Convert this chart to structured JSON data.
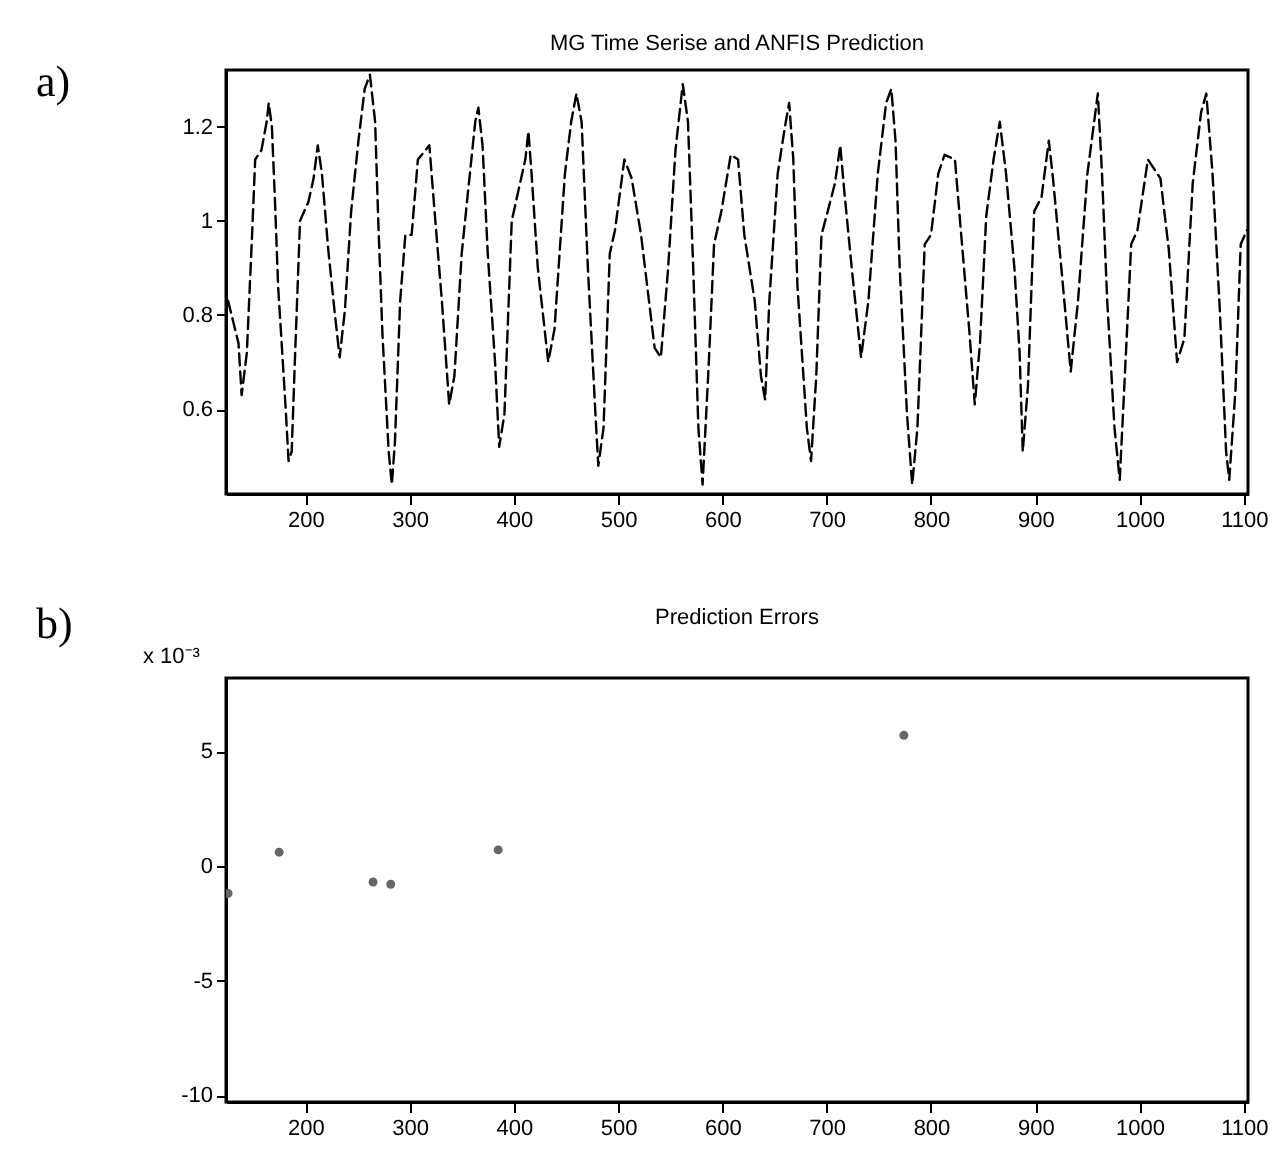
{
  "chart_data": [
    {
      "type": "line",
      "title": "MG Time Serise and ANFIS Prediction",
      "annotations": [
        "a)"
      ],
      "xlim": [
        124,
        1104
      ],
      "ylim": [
        0.42,
        1.32
      ],
      "xticks": [
        200,
        300,
        400,
        500,
        600,
        700,
        800,
        900,
        1000,
        1100
      ],
      "yticks": [
        0.6,
        0.8,
        1,
        1.2
      ],
      "line_style": "dashed",
      "series": [
        {
          "color": "#000000",
          "x": [
            126,
            136,
            139,
            144,
            149,
            152,
            158,
            163,
            165,
            168,
            171,
            174,
            181,
            184,
            187,
            190,
            195,
            203,
            208,
            212,
            216,
            222,
            228,
            233,
            238,
            244,
            251,
            257,
            262,
            267,
            270,
            274,
            280,
            283,
            286,
            291,
            296,
            302,
            308,
            319,
            324,
            331,
            338,
            343,
            350,
            356,
            363,
            366,
            370,
            375,
            382,
            386,
            391,
            398,
            404,
            411,
            414,
            417,
            423,
            433,
            439,
            449,
            455,
            460,
            465,
            471,
            478,
            481,
            486,
            492,
            497,
            506,
            513,
            522,
            535,
            541,
            548,
            555,
            562,
            567,
            572,
            577,
            581,
            587,
            592,
            599,
            608,
            615,
            621,
            631,
            637,
            641,
            645,
            653,
            660,
            664,
            668,
            672,
            681,
            685,
            690,
            695,
            701,
            708,
            713,
            717,
            724,
            733,
            740,
            749,
            757,
            762,
            766,
            770,
            777,
            782,
            787,
            794,
            800,
            807,
            813,
            823,
            829,
            837,
            842,
            847,
            853,
            860,
            866,
            872,
            880,
            885,
            888,
            893,
            899,
            906,
            913,
            917,
            925,
            934,
            941,
            950,
            960,
            964,
            969,
            976,
            981,
            985,
            992,
            998,
            1008,
            1020,
            1028,
            1036,
            1043,
            1051,
            1059,
            1064,
            1070,
            1077,
            1083,
            1086,
            1092,
            1097,
            1103
          ],
          "values": [
            0.83,
            0.74,
            0.63,
            0.72,
            0.97,
            1.13,
            1.15,
            1.21,
            1.25,
            1.2,
            1.04,
            0.86,
            0.61,
            0.49,
            0.51,
            0.7,
            1.0,
            1.04,
            1.09,
            1.16,
            1.1,
            0.94,
            0.81,
            0.71,
            0.81,
            1.02,
            1.17,
            1.28,
            1.31,
            1.21,
            1.0,
            0.76,
            0.51,
            0.44,
            0.53,
            0.83,
            0.97,
            0.97,
            1.13,
            1.16,
            1.02,
            0.83,
            0.61,
            0.67,
            0.93,
            1.06,
            1.21,
            1.24,
            1.16,
            0.93,
            0.7,
            0.52,
            0.59,
            1.0,
            1.06,
            1.13,
            1.19,
            1.1,
            0.9,
            0.7,
            0.77,
            1.1,
            1.21,
            1.27,
            1.21,
            0.9,
            0.6,
            0.48,
            0.56,
            0.93,
            0.98,
            1.13,
            1.09,
            0.97,
            0.73,
            0.71,
            0.9,
            1.15,
            1.29,
            1.21,
            0.9,
            0.56,
            0.44,
            0.7,
            0.95,
            1.02,
            1.14,
            1.13,
            0.97,
            0.83,
            0.67,
            0.62,
            0.83,
            1.1,
            1.2,
            1.25,
            1.13,
            0.86,
            0.56,
            0.49,
            0.67,
            0.97,
            1.02,
            1.08,
            1.16,
            1.06,
            0.9,
            0.71,
            0.83,
            1.1,
            1.25,
            1.28,
            1.17,
            0.9,
            0.59,
            0.44,
            0.56,
            0.95,
            0.97,
            1.1,
            1.14,
            1.13,
            0.97,
            0.76,
            0.61,
            0.74,
            1.01,
            1.13,
            1.21,
            1.1,
            0.9,
            0.72,
            0.51,
            0.65,
            1.02,
            1.05,
            1.17,
            1.09,
            0.9,
            0.68,
            0.83,
            1.1,
            1.27,
            1.1,
            0.83,
            0.56,
            0.45,
            0.63,
            0.95,
            0.98,
            1.13,
            1.09,
            0.94,
            0.7,
            0.75,
            1.08,
            1.23,
            1.27,
            1.1,
            0.81,
            0.51,
            0.45,
            0.64,
            0.95,
            0.98
          ]
        }
      ]
    },
    {
      "type": "scatter",
      "title": "Prediction Errors",
      "ylabel": "x 10⁻³",
      "annotations": [
        "b)"
      ],
      "xlim": [
        124,
        1104
      ],
      "ylim": [
        -10.3,
        8.2
      ],
      "xticks": [
        200,
        300,
        400,
        500,
        600,
        700,
        800,
        900,
        1000,
        1100
      ],
      "yticks": [
        -10,
        -5,
        0,
        5
      ],
      "marker": "circle",
      "series": [
        {
          "color": "#666666",
          "x": [
            126,
            175,
            265,
            282,
            385,
            774
          ],
          "values": [
            -1.2,
            0.6,
            -0.7,
            -0.8,
            0.7,
            5.7
          ]
        }
      ]
    }
  ]
}
